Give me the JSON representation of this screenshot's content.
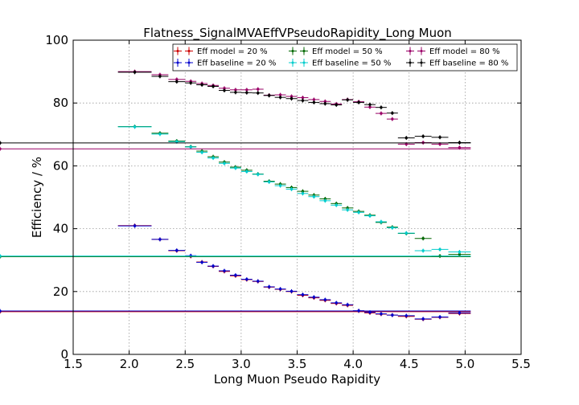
{
  "chart_data": {
    "type": "scatter",
    "title": "Flatness_SignalMVAEffVPseudoRapidity_Long Muon",
    "xlabel": "Long Muon Pseudo Rapidity",
    "ylabel": "Efficiency / %",
    "xlim": [
      1.5,
      5.5
    ],
    "ylim": [
      0,
      100
    ],
    "xticks": [
      "1.5",
      "2.0",
      "2.5",
      "3.0",
      "3.5",
      "4.0",
      "4.5",
      "5.0",
      "5.5"
    ],
    "yticks": [
      "0",
      "20",
      "40",
      "60",
      "80",
      "100"
    ],
    "grid": true,
    "legend_position": "top-right",
    "bin_edges": [
      1.9,
      2.2,
      2.35,
      2.5,
      2.6,
      2.7,
      2.8,
      2.9,
      3.0,
      3.1,
      3.2,
      3.3,
      3.4,
      3.5,
      3.6,
      3.7,
      3.8,
      3.9,
      4.0,
      4.1,
      4.2,
      4.3,
      4.4,
      4.55,
      4.7,
      4.85,
      5.05
    ],
    "series": [
      {
        "name": "Eff model = 20 %",
        "color": "#cc0000",
        "values": [
          41.0,
          36.6,
          33.0,
          31.2,
          29.4,
          28.0,
          26.4,
          25.0,
          23.8,
          23.2,
          21.4,
          20.7,
          20.0,
          18.8,
          18.0,
          17.2,
          16.2,
          15.6,
          13.8,
          13.2,
          12.8,
          12.5,
          12.1,
          11.2,
          11.8,
          13.0,
          13.6
        ]
      },
      {
        "name": "Eff baseline = 20 %",
        "color": "#0000cc",
        "values": [
          40.9,
          36.6,
          33.1,
          31.4,
          29.3,
          28.1,
          26.6,
          25.2,
          23.9,
          23.3,
          21.5,
          20.8,
          20.1,
          19.0,
          18.2,
          17.4,
          16.4,
          15.8,
          13.9,
          13.4,
          12.9,
          12.5,
          12.3,
          11.3,
          11.9,
          13.2,
          13.8
        ]
      },
      {
        "name": "Eff model = 50 %",
        "color": "#006600",
        "values": [
          72.5,
          70.4,
          67.9,
          66.1,
          64.7,
          62.9,
          61.2,
          59.6,
          58.6,
          57.4,
          55.1,
          54.2,
          53.1,
          51.9,
          50.7,
          49.5,
          48.0,
          46.6,
          45.5,
          44.3,
          42.0,
          40.5,
          38.5,
          36.9,
          31.3,
          31.8,
          31.1
        ]
      },
      {
        "name": "Eff baseline = 50 %",
        "color": "#00cccc",
        "values": [
          72.4,
          70.1,
          67.7,
          66.0,
          64.3,
          62.5,
          60.8,
          59.3,
          58.2,
          57.3,
          54.9,
          53.7,
          52.6,
          51.2,
          50.2,
          48.9,
          47.5,
          46.0,
          45.2,
          44.1,
          42.2,
          40.3,
          38.6,
          33.0,
          33.4,
          32.6,
          31.3
        ]
      },
      {
        "name": "Eff model = 80 %",
        "color": "#990066",
        "values": [
          90.0,
          89.0,
          87.5,
          86.9,
          86.2,
          85.6,
          84.7,
          84.2,
          84.2,
          84.4,
          82.5,
          82.6,
          82.1,
          81.7,
          81.1,
          80.5,
          79.7,
          81.1,
          80.4,
          78.7,
          76.7,
          74.9,
          66.9,
          67.4,
          66.9,
          65.8,
          65.4
        ]
      },
      {
        "name": "Eff baseline = 80 %",
        "color": "#000000",
        "values": [
          89.8,
          88.5,
          86.8,
          86.4,
          85.8,
          85.3,
          84.0,
          83.4,
          83.3,
          83.2,
          82.4,
          81.8,
          81.4,
          80.8,
          80.2,
          79.8,
          79.4,
          81.0,
          80.2,
          79.5,
          78.6,
          76.8,
          68.9,
          69.4,
          69.1,
          67.4,
          67.3
        ]
      }
    ]
  }
}
